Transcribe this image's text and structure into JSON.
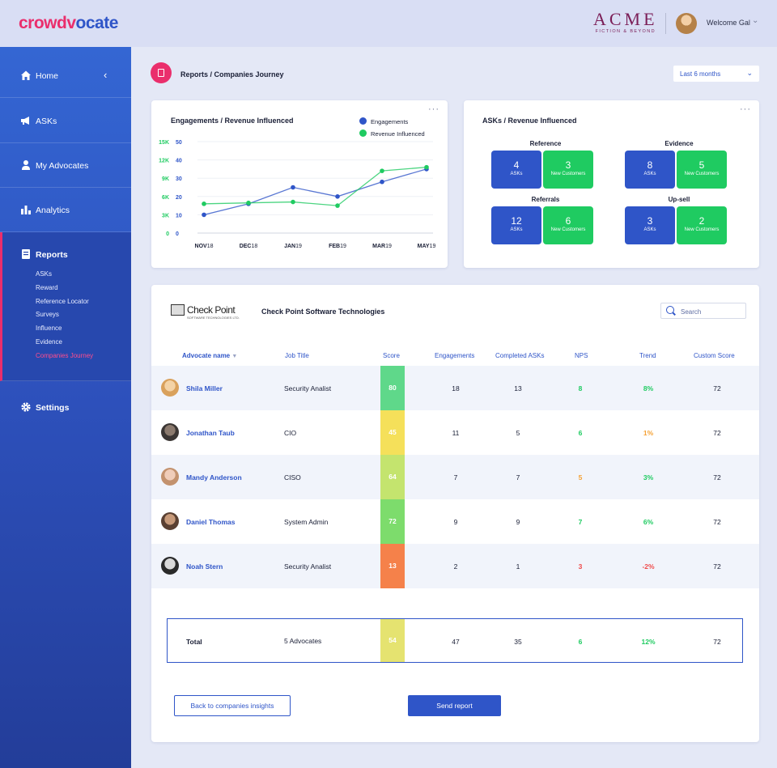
{
  "header": {
    "logo_a": "crowdv",
    "logo_b": "ocate",
    "brand": "ACME",
    "brand_tagline": "FICTION & BEYOND",
    "welcome": "Welcome Gal"
  },
  "sidebar": {
    "home": "Home",
    "asks": "ASKs",
    "advocates": "My Advocates",
    "analytics": "Analytics",
    "reports": "Reports",
    "reports_sub": [
      "ASKs",
      "Reward",
      "Reference Locator",
      "Surveys",
      "Influence",
      "Evidence",
      "Companies Journey"
    ],
    "settings": "Settings"
  },
  "page": {
    "title": "Reports / Companies Journey",
    "period": "Last 6 months"
  },
  "chart_data": {
    "type": "line",
    "title": "Engagements / Revenue Influenced",
    "categories": [
      "NOV18",
      "DEC18",
      "JAN19",
      "FEB19",
      "MAR19",
      "MAY19"
    ],
    "x_points": [
      {
        "pos": 0,
        "v": 0
      },
      {
        "pos": 1,
        "v": 0
      },
      {
        "pos": 1,
        "v": 0
      }
    ],
    "y_left_ticks": [
      "0",
      "3K",
      "6K",
      "9K",
      "12K",
      "15K"
    ],
    "y_right_ticks": [
      "0",
      "10",
      "20",
      "30",
      "40",
      "50"
    ],
    "series": [
      {
        "name": "Engagements",
        "color": "#2f55c8",
        "x": [
          0,
          1,
          2,
          3,
          4,
          5
        ],
        "y": [
          10,
          16,
          25,
          20,
          28,
          35
        ]
      },
      {
        "name": "Revenue Influenced",
        "color": "#1fcb61",
        "x": [
          0,
          1,
          2,
          3,
          4,
          5
        ],
        "y": [
          16,
          16.5,
          17,
          15,
          34,
          36
        ]
      }
    ],
    "ylim": [
      0,
      50
    ],
    "legend": "top-right"
  },
  "asks_card": {
    "title": "ASKs / Revenue Influenced",
    "groups": [
      {
        "label": "Reference",
        "asks": "4",
        "asks_label": "ASKs",
        "customers": "3",
        "customers_label": "New Customers"
      },
      {
        "label": "Evidence",
        "asks": "8",
        "asks_label": "ASKs",
        "customers": "5",
        "customers_label": "New Customers"
      },
      {
        "label": "Referrals",
        "asks": "12",
        "asks_label": "ASKs",
        "customers": "6",
        "customers_label": "New Customers"
      },
      {
        "label": "Up-sell",
        "asks": "3",
        "asks_label": "ASKs",
        "customers": "2",
        "customers_label": "New Customers"
      }
    ]
  },
  "company": {
    "logo_text": "Check Point",
    "logo_sub": "SOFTWARE TECHNOLOGIES LTD.",
    "name": "Check Point Software Technologies",
    "search_placeholder": "Search"
  },
  "table": {
    "headers": [
      "Advocate name",
      "Job Title",
      "Score",
      "Engagements",
      "Completed ASKs",
      "NPS",
      "Trend",
      "Custom Score"
    ],
    "rows": [
      {
        "name": "Shila Miller",
        "job": "Security Analist",
        "score": "80",
        "score_color": "#5fd88a",
        "engagements": "18",
        "asks": "13",
        "nps": "8",
        "nps_color": "#1fcb61",
        "trend": "8%",
        "trend_color": "#1fcb61",
        "custom": "72",
        "avatar": [
          "#f4d3a6",
          "#d9a15c"
        ]
      },
      {
        "name": "Jonathan Taub",
        "job": "CIO",
        "score": "45",
        "score_color": "#f5e05a",
        "engagements": "11",
        "asks": "5",
        "nps": "6",
        "nps_color": "#1fcb61",
        "trend": "1%",
        "trend_color": "#f5a236",
        "custom": "72",
        "avatar": [
          "#8b7a6e",
          "#3b3634"
        ]
      },
      {
        "name": "Mandy Anderson",
        "job": "CISO",
        "score": "64",
        "score_color": "#c4e46e",
        "engagements": "7",
        "asks": "7",
        "nps": "5",
        "nps_color": "#f5a236",
        "trend": "3%",
        "trend_color": "#1fcb61",
        "custom": "72",
        "avatar": [
          "#f0cdb9",
          "#c3926e"
        ]
      },
      {
        "name": "Daniel Thomas",
        "job": "System Admin",
        "score": "72",
        "score_color": "#7ddc6c",
        "engagements": "9",
        "asks": "9",
        "nps": "7",
        "nps_color": "#1fcb61",
        "trend": "6%",
        "trend_color": "#1fcb61",
        "custom": "72",
        "avatar": [
          "#c79a7a",
          "#5a4032"
        ]
      },
      {
        "name": "Noah Stern",
        "job": "Security Analist",
        "score": "13",
        "score_color": "#f5814a",
        "engagements": "2",
        "asks": "1",
        "nps": "3",
        "nps_color": "#f04b4b",
        "trend": "-2%",
        "trend_color": "#f04b4b",
        "custom": "72",
        "avatar": [
          "#d9d9d9",
          "#2a2a2a"
        ]
      }
    ],
    "total": {
      "label": "Total",
      "advocates": "5 Advocates",
      "score": "54",
      "score_color": "#e5e370",
      "engagements": "47",
      "asks": "35",
      "nps": "6",
      "nps_color": "#1fcb61",
      "trend": "12%",
      "trend_color": "#1fcb61",
      "custom": "72"
    }
  },
  "buttons": {
    "back": "Back to companies insights",
    "send": "Send report"
  }
}
